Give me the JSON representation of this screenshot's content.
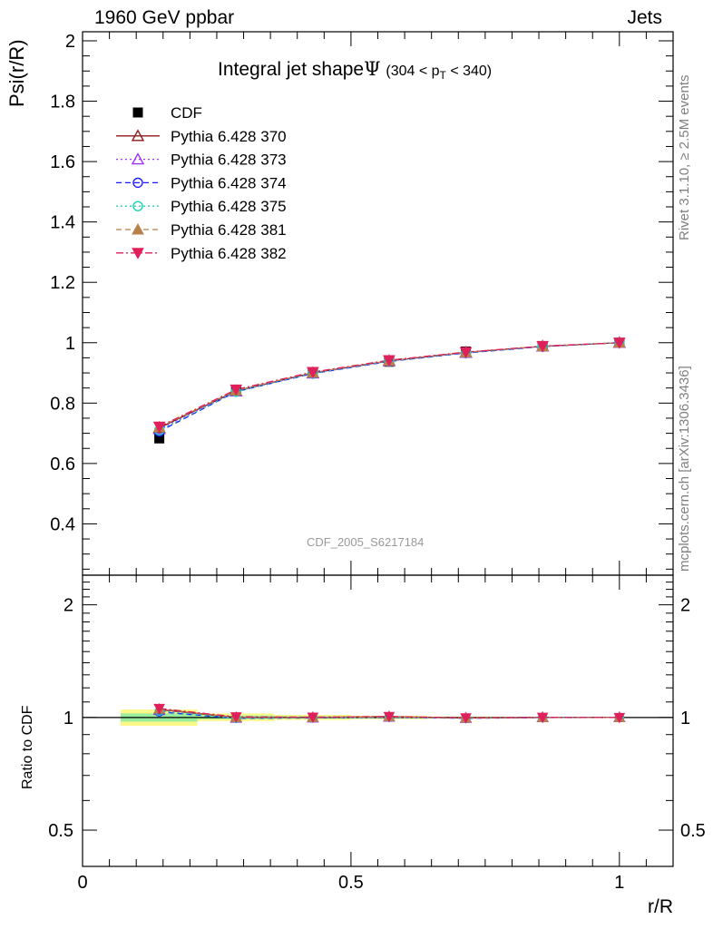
{
  "header": {
    "left": "1960 GeV ppbar",
    "right": "Jets"
  },
  "title": {
    "text": "Integral jet shape",
    "symbol": "Ψ",
    "range_pre": "(304 < p",
    "range_sub": "T",
    "range_post": " < 340)"
  },
  "side_labels": {
    "rivet": "Rivet 3.1.10, ≥ 2.5M events",
    "source": "mcplots.cern.ch [arXiv:1306.3436]"
  },
  "watermark": "CDF_2005_S6217184",
  "chart_data": [
    {
      "type": "line",
      "panel": "main",
      "ylabel": "Psi(r/R)",
      "xlabel": "",
      "xlim": [
        0,
        1.1
      ],
      "ylim": [
        0.23,
        2.03
      ],
      "yticks": [
        "0.4",
        "0.6",
        "0.8",
        "1",
        "1.2",
        "1.4",
        "1.6",
        "1.8",
        "2"
      ],
      "grid": false,
      "legend": "top-left",
      "x": [
        0.143,
        0.286,
        0.429,
        0.571,
        0.714,
        0.857,
        1.0
      ],
      "series": [
        {
          "name": "CDF",
          "color": "#000000",
          "marker": "square",
          "line": "none",
          "values": [
            0.683,
            0.842,
            0.901,
            0.937,
            0.971,
            0.988,
            1.0
          ]
        },
        {
          "name": "Pythia 6.428 370",
          "color": "#8b1a1a",
          "marker": "triangle-open",
          "line": "solid",
          "values": [
            0.718,
            0.84,
            0.9,
            0.94,
            0.968,
            0.988,
            1.0
          ]
        },
        {
          "name": "Pythia 6.428 373",
          "color": "#9b30ff",
          "marker": "triangle-open",
          "line": "dotted",
          "values": [
            0.714,
            0.839,
            0.899,
            0.939,
            0.967,
            0.988,
            1.0
          ]
        },
        {
          "name": "Pythia 6.428 374",
          "color": "#1a1aff",
          "marker": "circle-open",
          "line": "dashed",
          "values": [
            0.706,
            0.838,
            0.898,
            0.938,
            0.966,
            0.987,
            1.0
          ]
        },
        {
          "name": "Pythia 6.428 375",
          "color": "#20d0b0",
          "marker": "circle-open",
          "line": "dotted",
          "values": [
            0.71,
            0.838,
            0.899,
            0.939,
            0.967,
            0.988,
            1.0
          ]
        },
        {
          "name": "Pythia 6.428 381",
          "color": "#b8804a",
          "marker": "triangle-filled",
          "line": "dashed",
          "values": [
            0.72,
            0.842,
            0.901,
            0.94,
            0.968,
            0.988,
            1.0
          ]
        },
        {
          "name": "Pythia 6.428 382",
          "color": "#e0205a",
          "marker": "triangle-down-filled",
          "line": "dashdot",
          "values": [
            0.722,
            0.845,
            0.903,
            0.942,
            0.969,
            0.989,
            1.0
          ]
        }
      ]
    },
    {
      "type": "line",
      "panel": "ratio",
      "ylabel": "Ratio to CDF",
      "xlabel": "r/R",
      "xlim": [
        0,
        1.1
      ],
      "ylim": [
        0.4,
        2.4
      ],
      "yscale": "log",
      "yticks": [
        "0.5",
        "1",
        "2"
      ],
      "xticks": [
        "0",
        "0.5",
        "1"
      ],
      "bands": [
        {
          "x": [
            0.071,
            0.214
          ],
          "inner": [
            0.975,
            1.025
          ],
          "outer": [
            0.95,
            1.05
          ]
        },
        {
          "x": [
            0.214,
            0.357
          ],
          "inner": [
            0.99,
            1.012
          ],
          "outer": [
            0.978,
            1.025
          ]
        },
        {
          "x": [
            0.357,
            0.5
          ],
          "inner": [
            0.993,
            1.008
          ],
          "outer": [
            0.985,
            1.016
          ]
        },
        {
          "x": [
            0.5,
            0.643
          ],
          "inner": [
            0.995,
            1.005
          ],
          "outer": [
            0.99,
            1.01
          ]
        },
        {
          "x": [
            0.643,
            0.786
          ],
          "inner": [
            0.997,
            1.003
          ],
          "outer": [
            0.994,
            1.006
          ]
        },
        {
          "x": [
            0.786,
            0.929
          ],
          "inner": [
            0.998,
            1.002
          ],
          "outer": [
            0.996,
            1.004
          ]
        },
        {
          "x": [
            0.929,
            1.071
          ],
          "inner": [
            0.999,
            1.001
          ],
          "outer": [
            0.998,
            1.002
          ]
        }
      ],
      "x": [
        0.143,
        0.286,
        0.429,
        0.571,
        0.714,
        0.857,
        1.0
      ],
      "series": [
        {
          "name": "Pythia 6.428 370",
          "values": [
            1.05,
            1.0,
            1.0,
            1.005,
            0.997,
            1.0,
            1.0
          ]
        },
        {
          "name": "Pythia 6.428 373",
          "values": [
            1.045,
            0.997,
            0.998,
            1.003,
            0.996,
            1.0,
            1.0
          ]
        },
        {
          "name": "Pythia 6.428 374",
          "values": [
            1.035,
            0.995,
            0.997,
            1.001,
            0.995,
            0.999,
            1.0
          ]
        },
        {
          "name": "Pythia 6.428 375",
          "values": [
            1.04,
            0.996,
            0.998,
            1.002,
            0.996,
            1.0,
            1.0
          ]
        },
        {
          "name": "Pythia 6.428 381",
          "values": [
            1.054,
            1.0,
            1.0,
            1.004,
            0.997,
            1.0,
            1.0
          ]
        },
        {
          "name": "Pythia 6.428 382",
          "values": [
            1.057,
            1.004,
            1.002,
            1.006,
            0.998,
            1.001,
            1.0
          ]
        }
      ]
    }
  ]
}
